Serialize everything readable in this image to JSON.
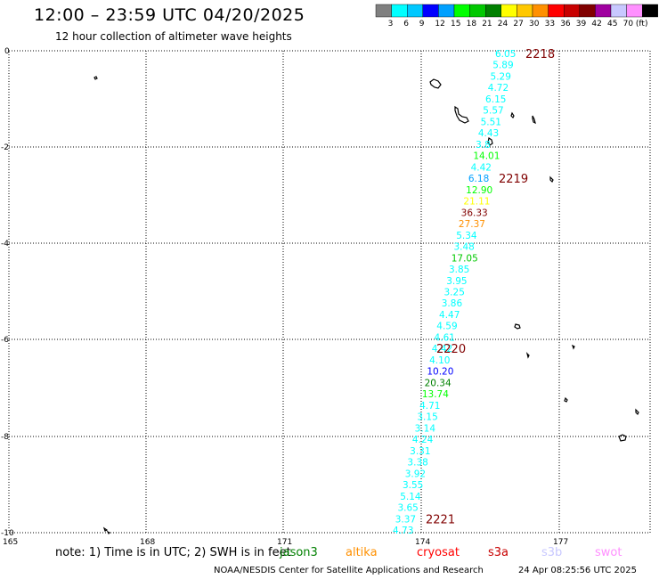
{
  "header": {
    "title": "12:00 – 23:59 UTC 04/20/2025",
    "subtitle": "12 hour collection of altimeter wave heights"
  },
  "legend": {
    "colors": [
      "#808080",
      "#00ffff",
      "#00c8ff",
      "#0000ff",
      "#00a0ff",
      "#00ff00",
      "#00c800",
      "#008000",
      "#ffff00",
      "#ffc800",
      "#ff9000",
      "#ff0000",
      "#c80000",
      "#800000",
      "#a000a0",
      "#c8c8ff",
      "#ff90ff",
      "#000000"
    ],
    "labels": [
      "3",
      "6",
      "9",
      "12",
      "15",
      "18",
      "21",
      "24",
      "27",
      "30",
      "33",
      "36",
      "39",
      "42",
      "45",
      "70 (ft)"
    ]
  },
  "axes": {
    "x_ticks": [
      "165",
      "168",
      "171",
      "174",
      "177"
    ],
    "y_ticks": [
      "0",
      "-2",
      "-4",
      "-6",
      "-8",
      "-10"
    ]
  },
  "time_labels": [
    "2218",
    "2219",
    "2220",
    "2221"
  ],
  "observations": [
    {
      "v": "6.05",
      "c": "#00ffff"
    },
    {
      "v": "5.89",
      "c": "#00ffff"
    },
    {
      "v": "5.29",
      "c": "#00ffff"
    },
    {
      "v": "4.72",
      "c": "#00ffff"
    },
    {
      "v": "6.15",
      "c": "#00ffff"
    },
    {
      "v": "5.57",
      "c": "#00ffff"
    },
    {
      "v": "5.51",
      "c": "#00ffff"
    },
    {
      "v": "4.43",
      "c": "#00ffff"
    },
    {
      "v": "3.8",
      "c": "#00ffff"
    },
    {
      "v": "14.01",
      "c": "#00ff00"
    },
    {
      "v": "4.42",
      "c": "#00ffff"
    },
    {
      "v": "6.18",
      "c": "#00a0ff"
    },
    {
      "v": "12.90",
      "c": "#00ff00"
    },
    {
      "v": "21.11",
      "c": "#ffff00"
    },
    {
      "v": "36.33",
      "c": "#800000"
    },
    {
      "v": "27.37",
      "c": "#ff9000"
    },
    {
      "v": "5.34",
      "c": "#00ffff"
    },
    {
      "v": "3.48",
      "c": "#00ffff"
    },
    {
      "v": "17.05",
      "c": "#00c800"
    },
    {
      "v": "3.85",
      "c": "#00ffff"
    },
    {
      "v": "3.95",
      "c": "#00ffff"
    },
    {
      "v": "3.25",
      "c": "#00ffff"
    },
    {
      "v": "3.86",
      "c": "#00ffff"
    },
    {
      "v": "4.47",
      "c": "#00ffff"
    },
    {
      "v": "4.59",
      "c": "#00ffff"
    },
    {
      "v": "4.61",
      "c": "#00ffff"
    },
    {
      "v": "4.42",
      "c": "#00ffff"
    },
    {
      "v": "4.10",
      "c": "#00ffff"
    },
    {
      "v": "10.20",
      "c": "#0000ff"
    },
    {
      "v": "20.34",
      "c": "#008000"
    },
    {
      "v": "13.74",
      "c": "#00ff00"
    },
    {
      "v": "4.71",
      "c": "#00ffff"
    },
    {
      "v": "3.15",
      "c": "#00ffff"
    },
    {
      "v": "3.14",
      "c": "#00ffff"
    },
    {
      "v": "4.24",
      "c": "#00ffff"
    },
    {
      "v": "3.31",
      "c": "#00ffff"
    },
    {
      "v": "3.38",
      "c": "#00ffff"
    },
    {
      "v": "3.92",
      "c": "#00ffff"
    },
    {
      "v": "3.55",
      "c": "#00ffff"
    },
    {
      "v": "5.14",
      "c": "#00ffff"
    },
    {
      "v": "3.65",
      "c": "#00ffff"
    },
    {
      "v": "3.37",
      "c": "#00ffff"
    },
    {
      "v": "4.73",
      "c": "#00ffff"
    }
  ],
  "notes": {
    "prefix": "note: 1) Time is in UTC; 2) SWH is in feet",
    "satellites": [
      {
        "name": "jason3",
        "color": "#008000"
      },
      {
        "name": "altika",
        "color": "#ff9000"
      },
      {
        "name": "cryosat",
        "color": "#ff0000"
      },
      {
        "name": "s3a",
        "color": "#c80000"
      },
      {
        "name": "s3b",
        "color": "#c8c8ff"
      },
      {
        "name": "swot",
        "color": "#ff90ff"
      }
    ]
  },
  "footer": {
    "credit": "NOAA/NESDIS Center for Satellite Applications and Research",
    "timestamp": "24 Apr 08:25:56 UTC 2025"
  },
  "colors": {
    "time_label": "#800000",
    "grid": "#000000"
  }
}
